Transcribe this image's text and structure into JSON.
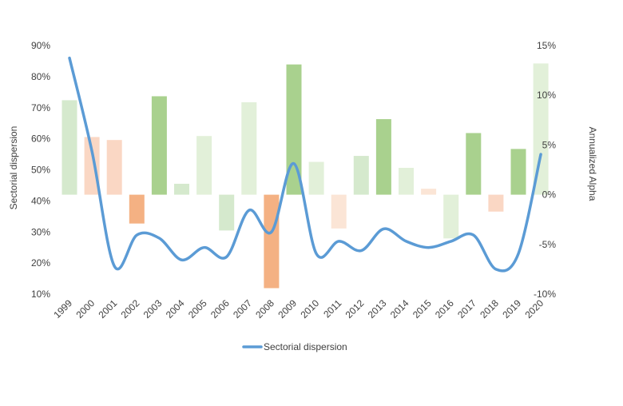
{
  "chart_data": {
    "type": "bar+line",
    "categories": [
      "1999",
      "2000",
      "2001",
      "2002",
      "2003",
      "2004",
      "2005",
      "2006",
      "2007",
      "2008",
      "2009",
      "2010",
      "2011",
      "2012",
      "2013",
      "2014",
      "2015",
      "2016",
      "2017",
      "2018",
      "2019",
      "2020"
    ],
    "series": [
      {
        "name": "Sectorial dispersion",
        "type": "line",
        "axis": "left",
        "color": "#5B9BD5",
        "values": [
          86,
          56,
          19,
          29,
          28,
          21,
          25,
          22,
          37,
          30,
          52,
          23,
          27,
          24,
          31,
          27,
          25,
          27,
          29,
          18,
          23,
          55
        ]
      },
      {
        "type": "bar",
        "axis": "right",
        "values": [
          9.5,
          5.8,
          5.5,
          -2.9,
          9.9,
          1.1,
          5.9,
          -3.6,
          9.3,
          -9.4,
          13.1,
          3.3,
          -3.4,
          3.9,
          7.6,
          2.7,
          0.6,
          -4.4,
          6.2,
          -1.7,
          4.6,
          13.2
        ],
        "colors": [
          "#D5E9CD",
          "#FAD7C4",
          "#FAD7C4",
          "#F4B183",
          "#A9D18E",
          "#D5E9CD",
          "#E2F0D9",
          "#D5E9CD",
          "#E2F0D9",
          "#F4B183",
          "#A9D18E",
          "#E2F0D9",
          "#FBE5D6",
          "#D5E9CD",
          "#A9D18E",
          "#E2F0D9",
          "#FBE5D6",
          "#E2F0D9",
          "#A9D18E",
          "#FAD7C4",
          "#A9D18E",
          "#E2F0D9"
        ]
      }
    ],
    "ylabel": "Sectorial dispersion",
    "y2label": "Annualized Alpha",
    "ylim": [
      10,
      90
    ],
    "y2lim": [
      -10,
      15
    ],
    "yticks": [
      "10%",
      "20%",
      "30%",
      "40%",
      "50%",
      "60%",
      "70%",
      "80%",
      "90%"
    ],
    "y2ticks": [
      "-10%",
      "-5%",
      "0%",
      "5%",
      "10%",
      "15%"
    ],
    "legend": "bottom",
    "legend_entries": [
      "Sectorial dispersion"
    ],
    "grid": false
  }
}
